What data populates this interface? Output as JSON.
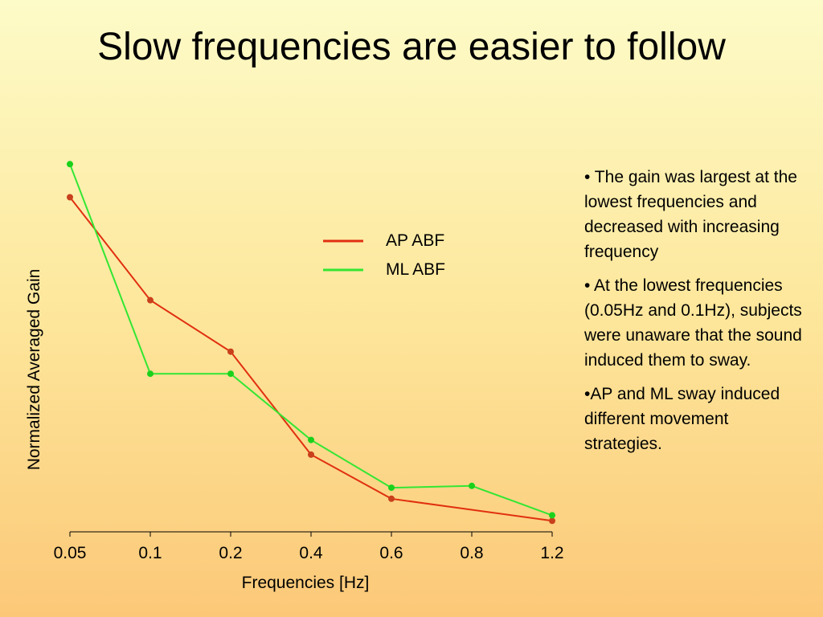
{
  "slide": {
    "title": "Slow frequencies are easier to follow",
    "bullets": [
      "• The gain was largest at the lowest frequencies and decreased with increasing frequency",
      "• At the lowest frequencies (0.05Hz and 0.1Hz), subjects were unaware that the sound induced them to sway.",
      "•AP and ML sway induced different movement strategies."
    ]
  },
  "chart_data": {
    "type": "line",
    "title": "",
    "xlabel": "Frequencies [Hz]",
    "ylabel": "Normalized Averaged Gain",
    "categories": [
      "0.05",
      "0.1",
      "0.2",
      "0.4",
      "0.6",
      "0.8",
      "1.2"
    ],
    "x_scale": "categorical",
    "grid": false,
    "legend_position": "top-center",
    "series": [
      {
        "name": "AP ABF",
        "color": "#e03010",
        "marker_color": "#c8401c",
        "x": [
          "0.05",
          "0.1",
          "0.2",
          "0.4",
          "0.6",
          "1.2"
        ],
        "values": [
          0.91,
          0.63,
          0.49,
          0.21,
          0.09,
          0.03
        ]
      },
      {
        "name": "ML ABF",
        "color": "#33e633",
        "marker_color": "#1bd11b",
        "x": [
          "0.05",
          "0.1",
          "0.2",
          "0.4",
          "0.6",
          "0.8",
          "1.2"
        ],
        "values": [
          1.0,
          0.43,
          0.43,
          0.25,
          0.12,
          0.125,
          0.045
        ]
      }
    ],
    "ylim": [
      0,
      1.04
    ]
  }
}
